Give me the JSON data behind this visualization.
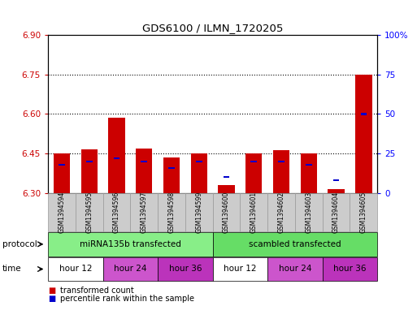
{
  "title": "GDS6100 / ILMN_1720205",
  "samples": [
    "GSM1394594",
    "GSM1394595",
    "GSM1394596",
    "GSM1394597",
    "GSM1394598",
    "GSM1394599",
    "GSM1394600",
    "GSM1394601",
    "GSM1394602",
    "GSM1394603",
    "GSM1394604",
    "GSM1394605"
  ],
  "red_values": [
    6.45,
    6.465,
    6.585,
    6.47,
    6.435,
    6.45,
    6.33,
    6.45,
    6.462,
    6.45,
    6.315,
    6.75
  ],
  "blue_values_pct": [
    18,
    20,
    22,
    20,
    16,
    20,
    10,
    20,
    20,
    18,
    8,
    50
  ],
  "ylim": [
    6.3,
    6.9
  ],
  "yticks": [
    6.3,
    6.45,
    6.6,
    6.75,
    6.9
  ],
  "right_ylim": [
    0,
    100
  ],
  "right_yticks": [
    0,
    25,
    50,
    75,
    100
  ],
  "right_yticklabels": [
    "0",
    "25",
    "50",
    "75",
    "100%"
  ],
  "bar_width": 0.6,
  "red_color": "#cc0000",
  "blue_color": "#0000cc",
  "proto_groups": [
    {
      "label": "miRNA135b transfected",
      "start": 0,
      "end": 5,
      "color": "#88ee88"
    },
    {
      "label": "scambled transfected",
      "start": 6,
      "end": 11,
      "color": "#66dd66"
    }
  ],
  "time_groups": [
    {
      "cols": [
        0,
        1
      ],
      "label": "hour 12",
      "color": "#ffffff"
    },
    {
      "cols": [
        2,
        3
      ],
      "label": "hour 24",
      "color": "#cc55cc"
    },
    {
      "cols": [
        4,
        5
      ],
      "label": "hour 36",
      "color": "#bb33bb"
    },
    {
      "cols": [
        6,
        7
      ],
      "label": "hour 12",
      "color": "#ffffff"
    },
    {
      "cols": [
        8,
        9
      ],
      "label": "hour 24",
      "color": "#cc55cc"
    },
    {
      "cols": [
        10,
        11
      ],
      "label": "hour 36",
      "color": "#bb33bb"
    }
  ],
  "legend_red": "transformed count",
  "legend_blue": "percentile rank within the sample",
  "bg_color": "#ffffff",
  "sample_bg": "#cccccc",
  "grid_yticks": [
    6.45,
    6.6,
    6.75
  ]
}
